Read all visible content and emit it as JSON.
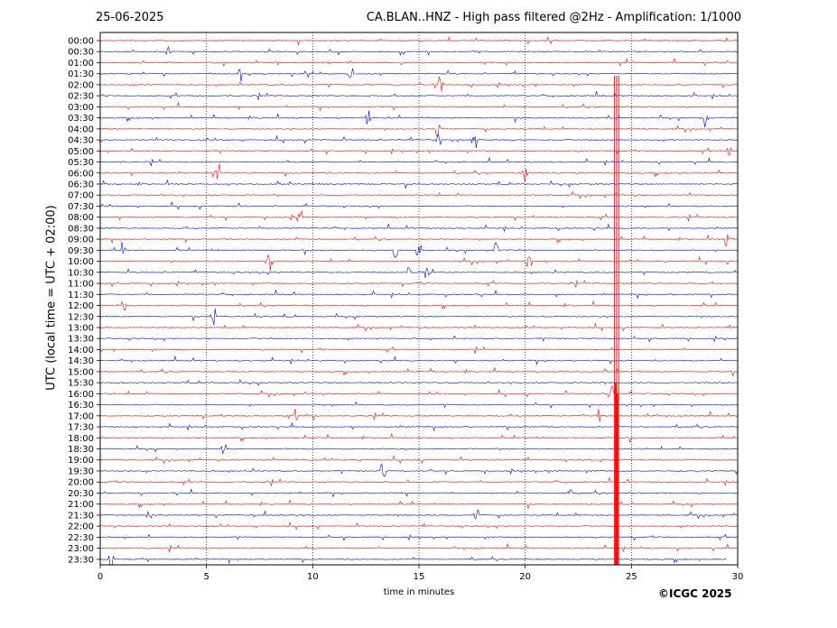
{
  "header": {
    "date": "25-06-2025",
    "title": "CA.BLAN..HNZ - High pass filtered @2Hz - Amplification: 1/1000"
  },
  "footer": {
    "copyright": "©ICGC 2025"
  },
  "chart_data": {
    "type": "line",
    "title": "CA.BLAN..HNZ - High pass filtered @2Hz - Amplification: 1/1000",
    "xlabel": "time in minutes",
    "ylabel": "UTC (local time = UTC + 02:00)",
    "xlim": [
      0,
      30
    ],
    "x_ticks": [
      0,
      5,
      10,
      15,
      20,
      25,
      30
    ],
    "y_ticks": [
      "00:00",
      "00:30",
      "01:00",
      "01:30",
      "02:00",
      "02:30",
      "03:00",
      "03:30",
      "04:00",
      "04:30",
      "05:00",
      "05:30",
      "06:00",
      "06:30",
      "07:00",
      "07:30",
      "08:00",
      "08:30",
      "09:00",
      "09:30",
      "10:00",
      "10:30",
      "11:00",
      "11:30",
      "12:00",
      "12:30",
      "13:00",
      "13:30",
      "14:00",
      "14:30",
      "15:00",
      "15:30",
      "16:00",
      "16:30",
      "17:00",
      "17:30",
      "18:00",
      "18:30",
      "19:00",
      "19:30",
      "20:00",
      "20:30",
      "21:00",
      "21:30",
      "22:00",
      "22:30",
      "23:00",
      "23:30"
    ],
    "grid": "vertical dotted at each x tick",
    "colors": {
      "even_rows": "#ff0000",
      "odd_rows": "#0000ff",
      "axes": "#000000"
    },
    "last_trace_end_minute": 29.5,
    "major_event": {
      "row_start": "02:00",
      "row_end": "23:30",
      "minute": 24.3,
      "color": "#ff0000"
    },
    "spikes": [
      {
        "row": "00:30",
        "minute": 3.2
      },
      {
        "row": "01:30",
        "minute": 6.6
      },
      {
        "row": "01:30",
        "minute": 11.8
      },
      {
        "row": "02:00",
        "minute": 16.0
      },
      {
        "row": "03:30",
        "minute": 12.6
      },
      {
        "row": "03:30",
        "minute": 28.5
      },
      {
        "row": "04:00",
        "minute": 15.9
      },
      {
        "row": "04:30",
        "minute": 15.9
      },
      {
        "row": "04:30",
        "minute": 17.6
      },
      {
        "row": "05:00",
        "minute": 29.6
      },
      {
        "row": "06:00",
        "minute": 5.5
      },
      {
        "row": "06:00",
        "minute": 20.0
      },
      {
        "row": "08:00",
        "minute": 9.4
      },
      {
        "row": "09:00",
        "minute": 29.5
      },
      {
        "row": "09:30",
        "minute": 1.1
      },
      {
        "row": "09:30",
        "minute": 13.9
      },
      {
        "row": "09:30",
        "minute": 15.0
      },
      {
        "row": "09:30",
        "minute": 18.6
      },
      {
        "row": "10:00",
        "minute": 7.9
      },
      {
        "row": "10:00",
        "minute": 20.2
      },
      {
        "row": "10:30",
        "minute": 14.5
      },
      {
        "row": "10:30",
        "minute": 15.4
      },
      {
        "row": "12:00",
        "minute": 1.1
      },
      {
        "row": "12:30",
        "minute": 5.3
      },
      {
        "row": "16:00",
        "minute": 24.0
      },
      {
        "row": "17:00",
        "minute": 9.2
      },
      {
        "row": "17:00",
        "minute": 23.4
      },
      {
        "row": "18:30",
        "minute": 5.8
      },
      {
        "row": "19:30",
        "minute": 13.3
      },
      {
        "row": "20:30",
        "minute": 22.1
      },
      {
        "row": "21:30",
        "minute": 2.3
      },
      {
        "row": "21:30",
        "minute": 17.7
      },
      {
        "row": "23:30",
        "minute": 0.5
      }
    ]
  }
}
